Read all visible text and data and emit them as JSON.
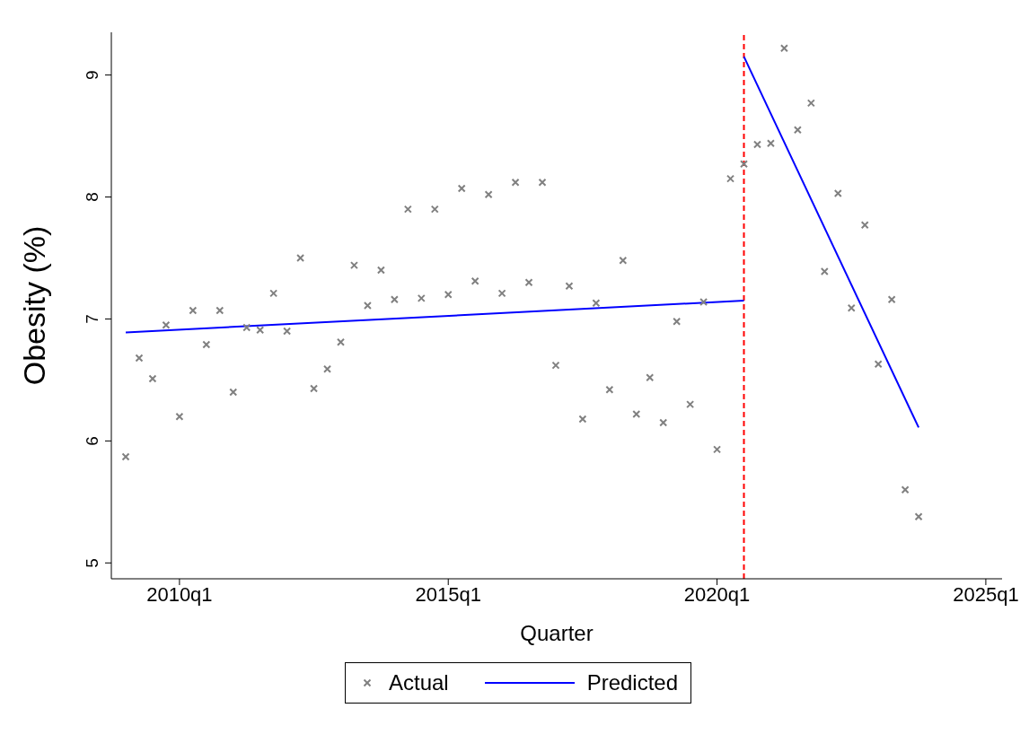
{
  "chart_data": {
    "type": "scatter",
    "xlabel": "Quarter",
    "ylabel": "Obesity (%)",
    "xlim": [
      "2008-09-25",
      "2025-04-20"
    ],
    "xticks": [
      {
        "value": "2010-01",
        "label": "2010q1"
      },
      {
        "value": "2015-01",
        "label": "2015q1"
      },
      {
        "value": "2020-01",
        "label": "2020q1"
      },
      {
        "value": "2025-01",
        "label": "2025q1"
      }
    ],
    "ylim": [
      4.87,
      9.35
    ],
    "yticks": [
      5,
      6,
      7,
      8,
      9
    ],
    "grid": false,
    "legend": "bottom",
    "x": [
      "2009-01",
      "2009-04",
      "2009-07",
      "2009-10",
      "2010-01",
      "2010-04",
      "2010-07",
      "2010-10",
      "2011-01",
      "2011-04",
      "2011-07",
      "2011-10",
      "2012-01",
      "2012-04",
      "2012-07",
      "2012-10",
      "2013-01",
      "2013-04",
      "2013-07",
      "2013-10",
      "2014-01",
      "2014-04",
      "2014-07",
      "2014-10",
      "2015-01",
      "2015-04",
      "2015-07",
      "2015-10",
      "2016-01",
      "2016-04",
      "2016-07",
      "2016-10",
      "2017-01",
      "2017-04",
      "2017-07",
      "2017-10",
      "2018-01",
      "2018-04",
      "2018-07",
      "2018-10",
      "2019-01",
      "2019-04",
      "2019-07",
      "2019-10",
      "2020-01",
      "2020-04",
      "2020-07",
      "2020-10",
      "2021-01",
      "2021-04",
      "2021-07",
      "2021-10",
      "2022-01",
      "2022-04",
      "2022-07",
      "2022-10",
      "2023-01",
      "2023-04",
      "2023-07",
      "2023-10"
    ],
    "series": [
      {
        "name": "Actual",
        "marker": "cross",
        "color": "#808080",
        "values": [
          5.87,
          6.68,
          6.51,
          6.95,
          6.2,
          7.07,
          6.79,
          7.07,
          6.4,
          6.93,
          6.91,
          7.21,
          6.9,
          7.5,
          6.43,
          6.59,
          6.81,
          7.44,
          7.11,
          7.4,
          7.16,
          7.9,
          7.17,
          7.9,
          7.2,
          8.07,
          7.31,
          8.02,
          7.21,
          8.12,
          7.3,
          8.12,
          6.62,
          7.27,
          6.18,
          7.13,
          6.42,
          7.48,
          6.22,
          6.52,
          6.15,
          6.98,
          6.3,
          7.14,
          5.93,
          8.15,
          8.27,
          8.43,
          8.44,
          9.22,
          8.55,
          8.77,
          7.39,
          8.03,
          7.09,
          7.77,
          6.63,
          7.16,
          5.6,
          5.38
        ]
      },
      {
        "name": "Predicted",
        "type": "line",
        "marker": "none",
        "line_style": "solid",
        "color": "#0000ff",
        "x": [
          "2009-01",
          "2020-07"
        ],
        "values": [
          6.89,
          7.15
        ]
      },
      {
        "type": "line",
        "marker": "none",
        "line_style": "solid",
        "color": "#0000ff",
        "x": [
          "2020-07",
          "2023-10"
        ],
        "values": [
          9.15,
          6.11
        ]
      }
    ],
    "ref_lines": [
      {
        "axis": "x",
        "value": "2020-07",
        "color": "#ff0000",
        "line_style": "dashed"
      }
    ]
  }
}
